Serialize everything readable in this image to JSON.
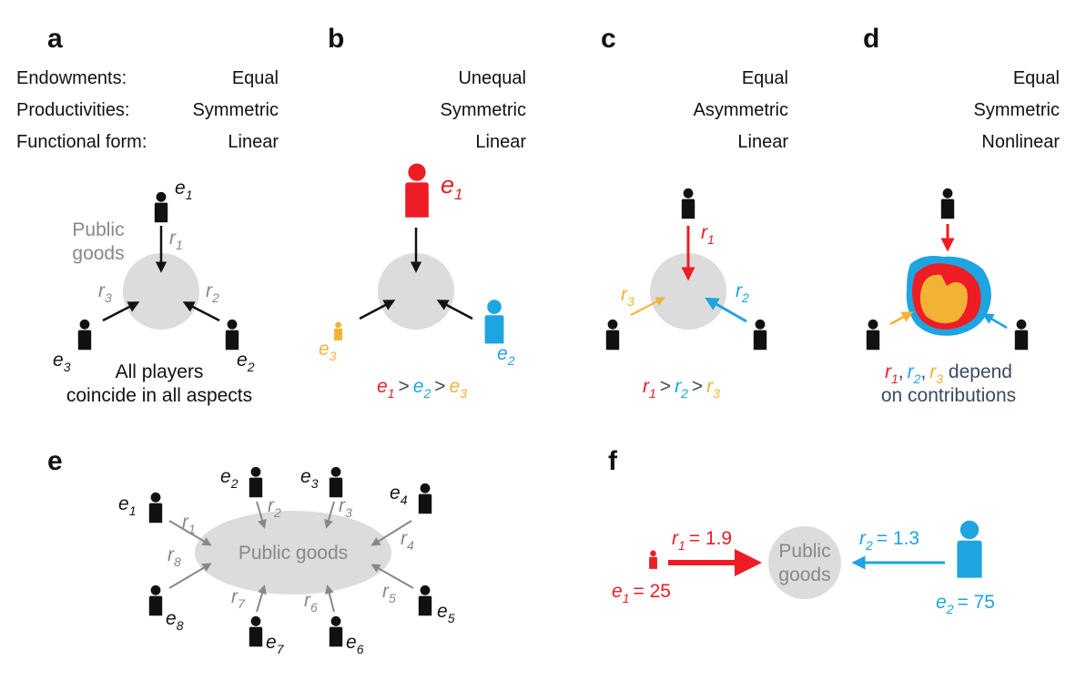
{
  "colors": {
    "black": "#111111",
    "gray": "#888888",
    "circle": "#dcdcdc",
    "blue": "#5b87c6",
    "purple": "#7b3fa0",
    "red": "#ee1c24",
    "cyan": "#1ea4e0",
    "orange": "#f2b233",
    "dark": "#3b4a63"
  },
  "attributes": [
    "Endowments:",
    "Productivities:",
    "Functional form:"
  ],
  "panels": {
    "a": {
      "letter": "a",
      "values": [
        "Equal",
        "Symmetric",
        "Linear"
      ],
      "circle_label": [
        "Public",
        "goods"
      ],
      "caption": [
        "All players",
        "coincide in all aspects"
      ]
    },
    "b": {
      "letter": "b",
      "values": [
        "Unequal",
        "Symmetric",
        "Linear"
      ],
      "rel": [
        ">",
        ">"
      ]
    },
    "c": {
      "letter": "c",
      "values": [
        "Equal",
        "Asymmetric",
        "Linear"
      ],
      "rel": [
        ">",
        ">"
      ]
    },
    "d": {
      "letter": "d",
      "values": [
        "Equal",
        "Symmetric",
        "Nonlinear"
      ],
      "caption": [
        ",",
        ",",
        " depend",
        "on contributions"
      ]
    },
    "e": {
      "letter": "e",
      "center_label": "Public goods"
    },
    "f": {
      "letter": "f",
      "circle_label": [
        "Public",
        "goods"
      ],
      "r1": "= 1.9",
      "r2": "= 1.3",
      "e1": "= 25",
      "e2": "= 75"
    }
  },
  "sym": {
    "e": "e",
    "r": "r"
  },
  "subs": [
    "1",
    "2",
    "3",
    "4",
    "5",
    "6",
    "7",
    "8"
  ]
}
